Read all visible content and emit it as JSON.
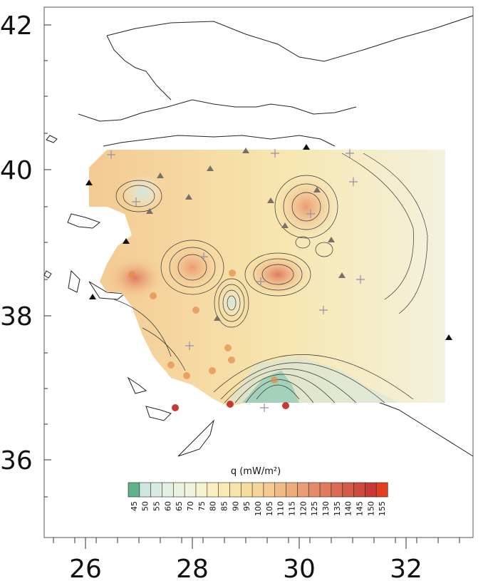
{
  "axes": {
    "y_ticks": [
      "42",
      "40",
      "38",
      "36"
    ],
    "x_ticks": [
      "26",
      "28",
      "30",
      "32"
    ],
    "lon_range": [
      25.4,
      33.0
    ],
    "lat_range": [
      34.9,
      42.0
    ]
  },
  "colorbar": {
    "title": "q (mW/m²)",
    "levels": [
      "45",
      "50",
      "55",
      "60",
      "65",
      "70",
      "75",
      "80",
      "85",
      "90",
      "95",
      "100",
      "105",
      "110",
      "115",
      "120",
      "125",
      "130",
      "135",
      "140",
      "145",
      "150",
      "155"
    ],
    "colors": [
      "#5fb38a",
      "#cfe6de",
      "#d9ebe0",
      "#e2efe1",
      "#ebf2e0",
      "#f2f3dc",
      "#f6f2cf",
      "#f7efbf",
      "#f8ebb2",
      "#f8e4a8",
      "#f7dca0",
      "#f6d49a",
      "#f4c992",
      "#f1bb88",
      "#eeac7e",
      "#ea9c74",
      "#e68b6a",
      "#e07a5f",
      "#da6a54",
      "#d35a49",
      "#cc4a3e",
      "#c63a33",
      "#e0401e"
    ]
  },
  "symbols": {
    "triangle_color": "#111111",
    "cross_color": "#9a8ea8",
    "circle_color": "#e58a4a"
  }
}
